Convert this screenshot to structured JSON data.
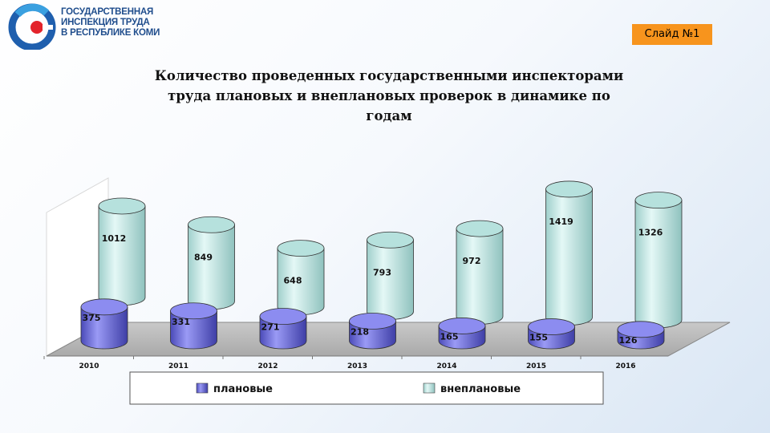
{
  "header": {
    "logo_lines": [
      "ГОСУДАРСТВЕННАЯ",
      "ИНСПЕКЦИЯ ТРУДА",
      "В РЕСПУБЛИКЕ КОМИ"
    ],
    "slide_label": "Слайд №1"
  },
  "colors": {
    "planned": "#7b7be8",
    "unplanned": "#c6ece8",
    "badge": "#f7941d",
    "logo_blue": "#1f4d8c"
  },
  "chart_data": {
    "type": "bar",
    "title_lines": [
      "Количество проведенных государственными инспекторами",
      "труда плановых и внеплановых проверок в динамике по",
      "годам"
    ],
    "categories": [
      "2010",
      "2011",
      "2012",
      "2013",
      "2014",
      "2015",
      "2016"
    ],
    "series": [
      {
        "name": "плановые",
        "values": [
          375,
          331,
          271,
          218,
          165,
          155,
          126
        ]
      },
      {
        "name": "внеплановые",
        "values": [
          1012,
          849,
          648,
          793,
          972,
          1419,
          1326
        ]
      }
    ],
    "stacked": true,
    "style": "3d-cylinder",
    "legend_position": "bottom",
    "grid": false
  }
}
